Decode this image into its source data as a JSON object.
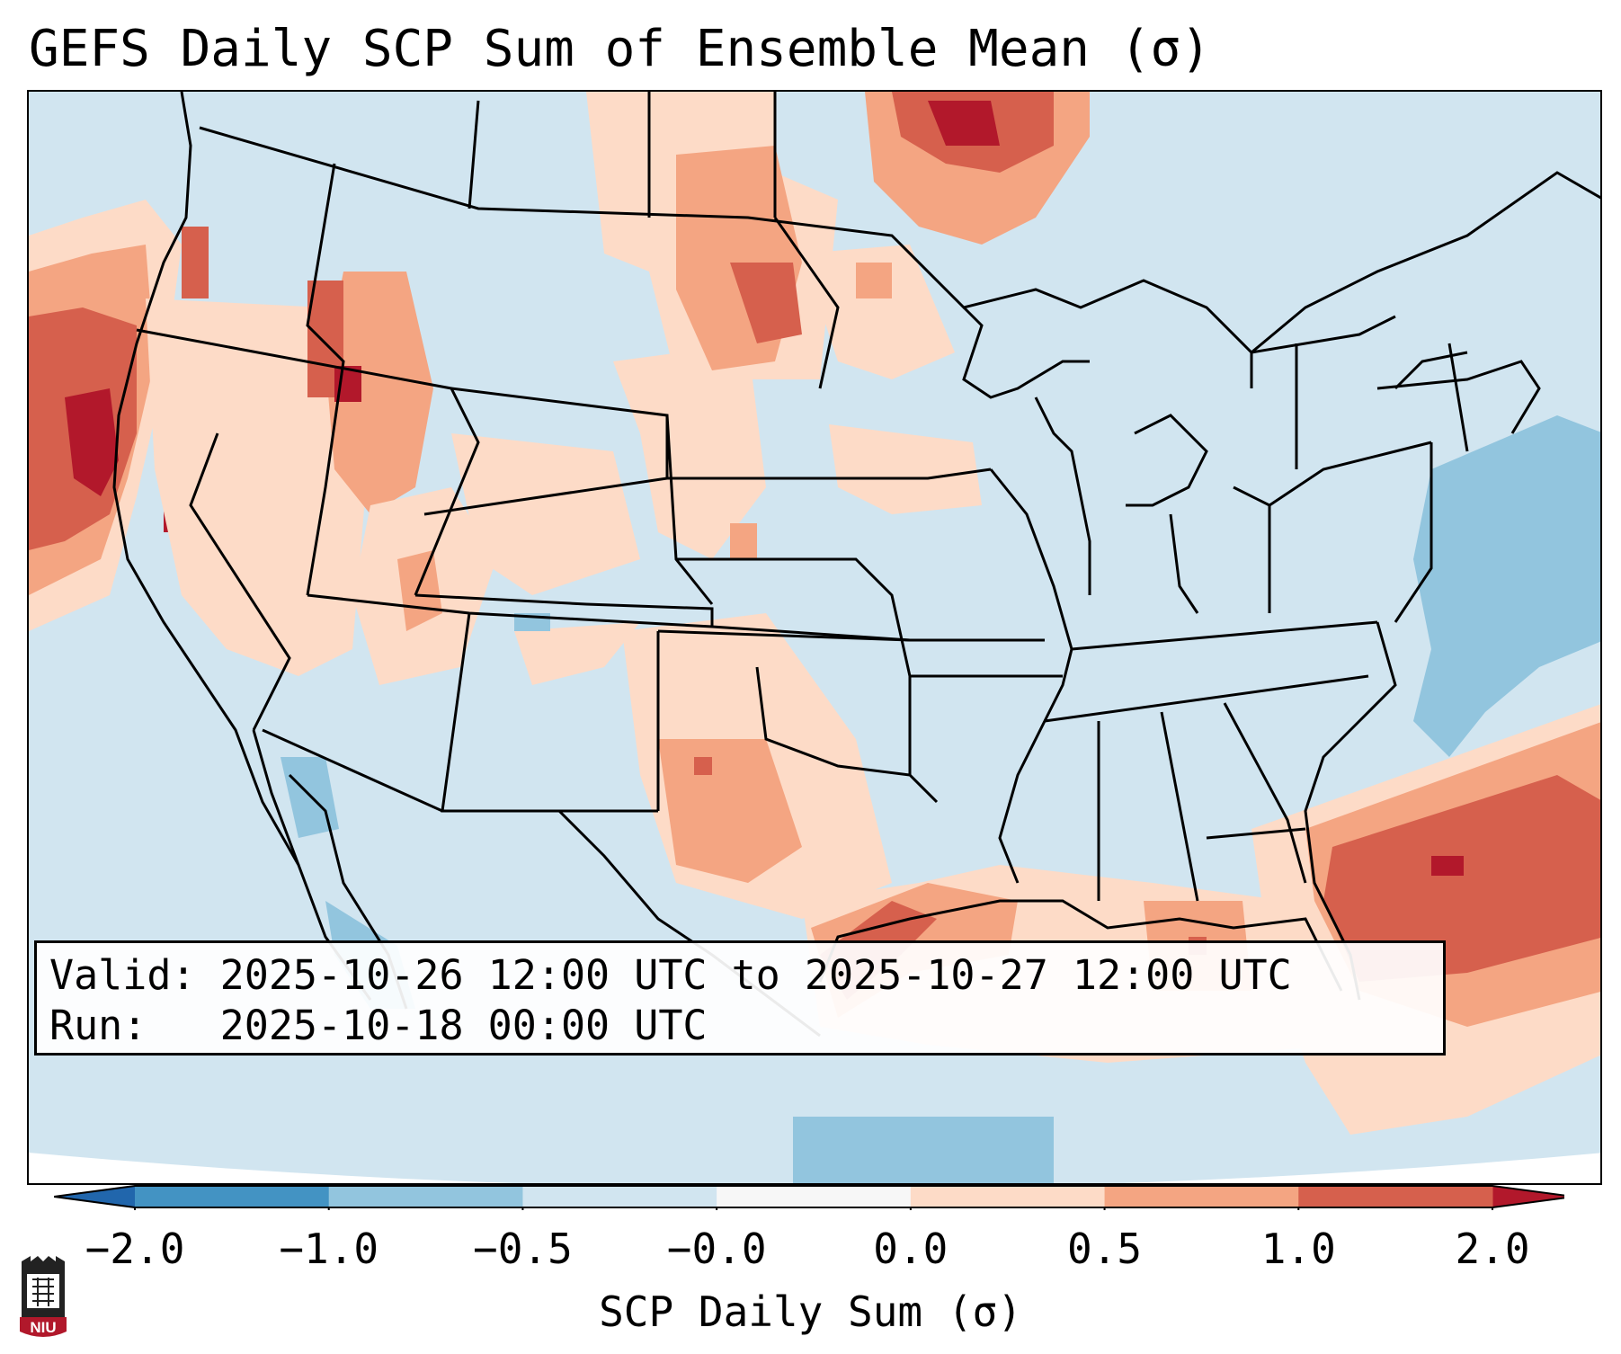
{
  "title": "GEFS Daily SCP Sum of Ensemble Mean (σ)",
  "info": {
    "valid_label": "Valid:",
    "valid_value": "2025-10-26 12:00 UTC to 2025-10-27 12:00 UTC",
    "run_label": "Run:",
    "run_value": "2025-10-18 00:00 UTC"
  },
  "colorbar": {
    "title": "SCP Daily Sum (σ)",
    "tick_labels": [
      "−2.0",
      "−1.0",
      "−0.5",
      "−0.0",
      "0.0",
      "0.5",
      "1.0",
      "2.0"
    ],
    "colors": [
      "#4393c3",
      "#92c5de",
      "#d1e5f0",
      "#f7f7f7",
      "#fddbc7",
      "#f4a582",
      "#d6604d"
    ],
    "extend_low_color": "#2166ac",
    "extend_high_color": "#b2182b"
  },
  "logo": {
    "text": "NIU",
    "color": "#b1182b"
  },
  "map": {
    "region": "Contiguous United States",
    "background_color": "#d1e5f0",
    "ocean_outside_color": "#ffffff",
    "features": [
      {
        "name": "pacific-coast-high",
        "value": 1.0
      },
      {
        "name": "gulf-coast-positive",
        "value": 0.5
      },
      {
        "name": "atlantic-offshore-high",
        "value": 1.0
      },
      {
        "name": "atlantic-offshore-negative",
        "value": -0.5
      }
    ]
  }
}
